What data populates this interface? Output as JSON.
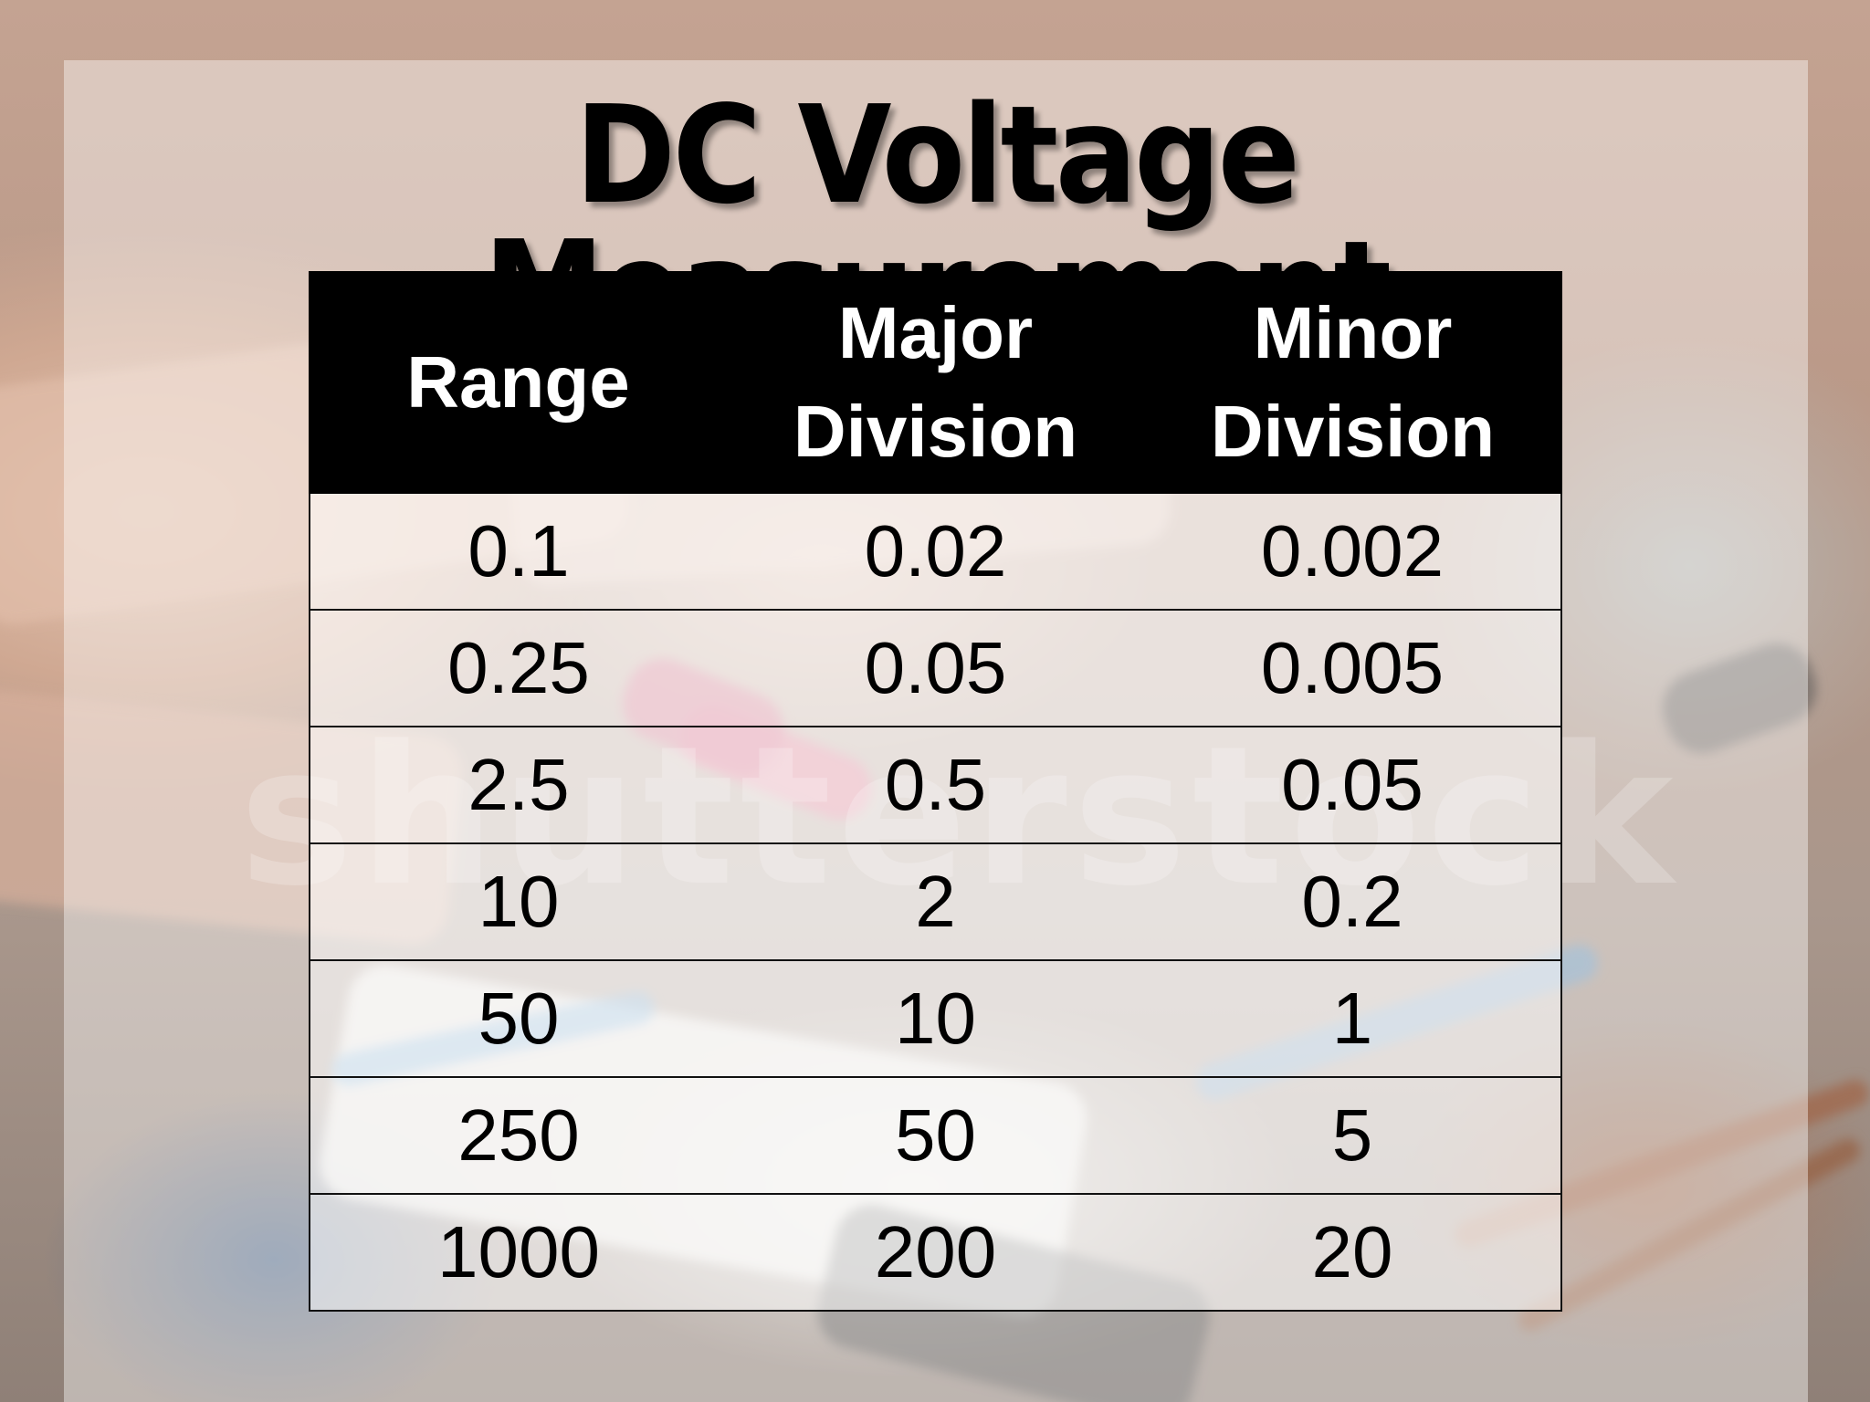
{
  "slide": {
    "title": "DC Voltage Measurement",
    "watermark": "shutterstock"
  },
  "table": {
    "headers": {
      "range": "Range",
      "major_line1": "Major",
      "major_line2": "Division",
      "minor_line1": "Minor",
      "minor_line2": "Division"
    },
    "rows": [
      {
        "range": "0.1",
        "major": "0.02",
        "minor": "0.002"
      },
      {
        "range": "0.25",
        "major": "0.05",
        "minor": "0.005"
      },
      {
        "range": "2.5",
        "major": "0.5",
        "minor": "0.05"
      },
      {
        "range": "10",
        "major": "2",
        "minor": "0.2"
      },
      {
        "range": "50",
        "major": "10",
        "minor": "1"
      },
      {
        "range": "250",
        "major": "50",
        "minor": "5"
      },
      {
        "range": "1000",
        "major": "200",
        "minor": "20"
      }
    ]
  },
  "colors": {
    "header_bg": "#000000",
    "header_text": "#ffffff",
    "cell_text": "#000000"
  }
}
